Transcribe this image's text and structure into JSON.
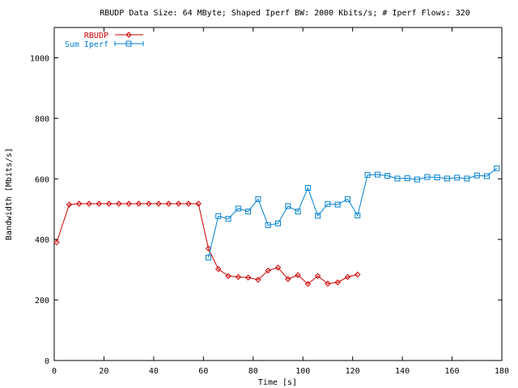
{
  "chart_data": {
    "type": "line",
    "title": "RBUDP Data Size: 64 MByte; Shaped Iperf BW: 2000 Kbits/s; # Iperf Flows: 320",
    "xlabel": "Time [s]",
    "ylabel": "Bandwidth [Mbits/s]",
    "xlim": [
      0,
      180
    ],
    "ylim": [
      0,
      1100
    ],
    "x_ticks": [
      0,
      20,
      40,
      60,
      80,
      100,
      120,
      140,
      160,
      180
    ],
    "y_ticks": [
      0,
      200,
      400,
      600,
      800,
      1000
    ],
    "grid": false,
    "legend_position": "top-left",
    "series": [
      {
        "name": "RBUDP",
        "color": "#cc0000",
        "marker": "diamond",
        "x": [
          1,
          6,
          10,
          14,
          18,
          22,
          26,
          30,
          34,
          38,
          42,
          46,
          50,
          54,
          58,
          62,
          66,
          70,
          74,
          78,
          82,
          86,
          90,
          94,
          98,
          102,
          106,
          110,
          114,
          118,
          122
        ],
        "y": [
          390,
          515,
          518,
          518,
          518,
          518,
          518,
          518,
          518,
          518,
          518,
          518,
          518,
          518,
          518,
          370,
          302,
          279,
          276,
          274,
          267,
          297,
          307,
          269,
          282,
          253,
          279,
          254,
          258,
          276,
          284
        ]
      },
      {
        "name": "Sum Iperf",
        "color": "#0080d0",
        "marker": "square",
        "x": [
          62,
          66,
          70,
          74,
          78,
          82,
          86,
          90,
          94,
          98,
          102,
          106,
          110,
          114,
          118,
          122,
          126,
          130,
          134,
          138,
          142,
          146,
          150,
          154,
          158,
          162,
          166,
          170,
          174,
          178
        ],
        "y": [
          340,
          477,
          468,
          502,
          492,
          533,
          447,
          453,
          510,
          492,
          570,
          478,
          517,
          515,
          533,
          479,
          613,
          614,
          610,
          601,
          602,
          598,
          606,
          605,
          601,
          604,
          601,
          611,
          609,
          635
        ]
      }
    ]
  }
}
